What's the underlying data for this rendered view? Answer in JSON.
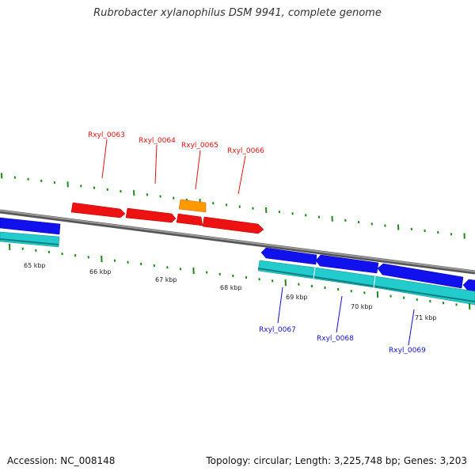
{
  "title": "Rubrobacter xylanophilus DSM 9941, complete genome",
  "footer": {
    "accession": "Accession: NC_008148",
    "topology": "Topology: circular; Length: 3,225,748 bp; Genes: 3,203"
  },
  "kbp_labels": [
    "65 kbp",
    "66 kbp",
    "67 kbp",
    "68 kbp",
    "69 kbp",
    "70 kbp",
    "71 kbp"
  ],
  "gene_labels_forward": [
    "Rxyl_0063",
    "Rxyl_0064",
    "Rxyl_0065",
    "Rxyl_0066"
  ],
  "gene_labels_reverse": [
    "Rxyl_0067",
    "Rxyl_0068",
    "Rxyl_0069"
  ],
  "colors": {
    "forward_gene": "#ee1111",
    "forward_label": "#dd1111",
    "highlight_gene": "#ff9900",
    "reverse_gene": "#1111ee",
    "reverse_label": "#1111cc",
    "cds_band": "#22cccc",
    "backbone": "#888888",
    "ticks": "#1a8a1a"
  }
}
